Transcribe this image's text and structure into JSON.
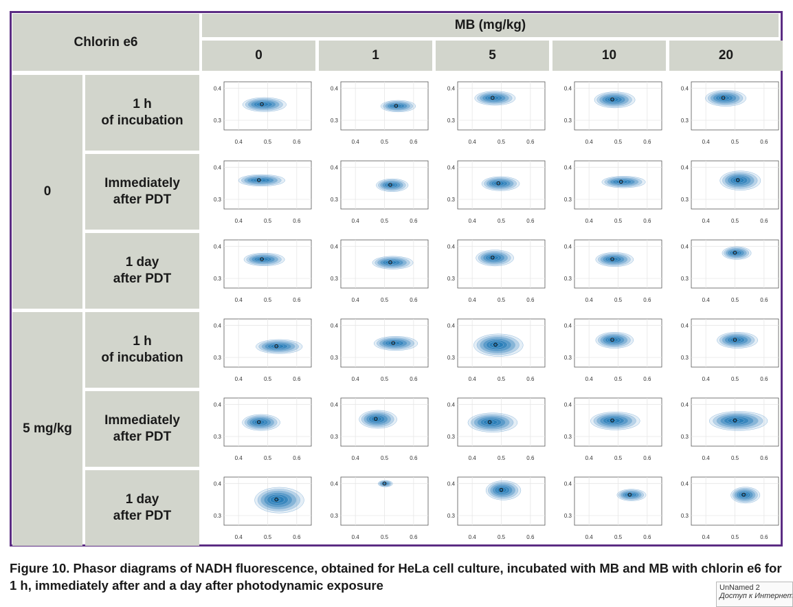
{
  "table": {
    "corner_label": "Chlorin e6",
    "mb_header": "MB (mg/kg)",
    "mb_columns": [
      "0",
      "1",
      "5",
      "10",
      "20"
    ],
    "groups": [
      {
        "label": "0",
        "rows": [
          "1 h\nof incubation",
          "Immediately\nafter PDT",
          "1 day\nafter PDT"
        ]
      },
      {
        "label": "5 mg/kg",
        "rows": [
          "1 h\nof incubation",
          "Immediately\nafter PDT",
          "1 day\nafter PDT"
        ]
      }
    ]
  },
  "chart_data": {
    "type": "contour",
    "description_axes": {
      "x_ticks": [
        "0.4",
        "0.5",
        "0.6"
      ],
      "y_ticks": [
        "0.3",
        "0.4"
      ],
      "xlim": [
        0.35,
        0.65
      ],
      "ylim": [
        0.27,
        0.42
      ]
    },
    "panels": [
      {
        "group": "0",
        "row": "1 h of incubation",
        "mb": "0",
        "center": [
          0.48,
          0.35
        ],
        "spread": [
          0.075,
          0.022
        ]
      },
      {
        "group": "0",
        "row": "1 h of incubation",
        "mb": "1",
        "center": [
          0.54,
          0.345
        ],
        "spread": [
          0.06,
          0.018
        ]
      },
      {
        "group": "0",
        "row": "1 h of incubation",
        "mb": "5",
        "center": [
          0.47,
          0.37
        ],
        "spread": [
          0.07,
          0.022
        ]
      },
      {
        "group": "0",
        "row": "1 h of incubation",
        "mb": "10",
        "center": [
          0.48,
          0.365
        ],
        "spread": [
          0.07,
          0.025
        ]
      },
      {
        "group": "0",
        "row": "1 h of incubation",
        "mb": "20",
        "center": [
          0.46,
          0.37
        ],
        "spread": [
          0.07,
          0.025
        ]
      },
      {
        "group": "0",
        "row": "Immediately after PDT",
        "mb": "0",
        "center": [
          0.47,
          0.36
        ],
        "spread": [
          0.08,
          0.018
        ]
      },
      {
        "group": "0",
        "row": "Immediately after PDT",
        "mb": "1",
        "center": [
          0.52,
          0.345
        ],
        "spread": [
          0.055,
          0.02
        ]
      },
      {
        "group": "0",
        "row": "Immediately after PDT",
        "mb": "5",
        "center": [
          0.49,
          0.35
        ],
        "spread": [
          0.065,
          0.022
        ]
      },
      {
        "group": "0",
        "row": "Immediately after PDT",
        "mb": "10",
        "center": [
          0.51,
          0.355
        ],
        "spread": [
          0.075,
          0.018
        ]
      },
      {
        "group": "0",
        "row": "Immediately after PDT",
        "mb": "20",
        "center": [
          0.51,
          0.36
        ],
        "spread": [
          0.07,
          0.03
        ]
      },
      {
        "group": "0",
        "row": "1 day after PDT",
        "mb": "0",
        "center": [
          0.48,
          0.36
        ],
        "spread": [
          0.07,
          0.02
        ]
      },
      {
        "group": "0",
        "row": "1 day after PDT",
        "mb": "1",
        "center": [
          0.52,
          0.35
        ],
        "spread": [
          0.07,
          0.02
        ]
      },
      {
        "group": "0",
        "row": "1 day after PDT",
        "mb": "5",
        "center": [
          0.47,
          0.365
        ],
        "spread": [
          0.065,
          0.025
        ]
      },
      {
        "group": "0",
        "row": "1 day after PDT",
        "mb": "10",
        "center": [
          0.48,
          0.36
        ],
        "spread": [
          0.065,
          0.022
        ]
      },
      {
        "group": "0",
        "row": "1 day after PDT",
        "mb": "20",
        "center": [
          0.5,
          0.38
        ],
        "spread": [
          0.05,
          0.02
        ]
      },
      {
        "group": "5 mg/kg",
        "row": "1 h of incubation",
        "mb": "0",
        "center": [
          0.53,
          0.335
        ],
        "spread": [
          0.08,
          0.022
        ]
      },
      {
        "group": "5 mg/kg",
        "row": "1 h of incubation",
        "mb": "1",
        "center": [
          0.53,
          0.345
        ],
        "spread": [
          0.075,
          0.022
        ]
      },
      {
        "group": "5 mg/kg",
        "row": "1 h of incubation",
        "mb": "5",
        "center": [
          0.48,
          0.34
        ],
        "spread": [
          0.085,
          0.035
        ]
      },
      {
        "group": "5 mg/kg",
        "row": "1 h of incubation",
        "mb": "10",
        "center": [
          0.48,
          0.355
        ],
        "spread": [
          0.065,
          0.025
        ]
      },
      {
        "group": "5 mg/kg",
        "row": "1 h of incubation",
        "mb": "20",
        "center": [
          0.5,
          0.355
        ],
        "spread": [
          0.07,
          0.025
        ]
      },
      {
        "group": "5 mg/kg",
        "row": "Immediately after PDT",
        "mb": "0",
        "center": [
          0.47,
          0.345
        ],
        "spread": [
          0.065,
          0.025
        ]
      },
      {
        "group": "5 mg/kg",
        "row": "Immediately after PDT",
        "mb": "1",
        "center": [
          0.47,
          0.355
        ],
        "spread": [
          0.065,
          0.028
        ]
      },
      {
        "group": "5 mg/kg",
        "row": "Immediately after PDT",
        "mb": "5",
        "center": [
          0.46,
          0.345
        ],
        "spread": [
          0.085,
          0.03
        ]
      },
      {
        "group": "5 mg/kg",
        "row": "Immediately after PDT",
        "mb": "10",
        "center": [
          0.48,
          0.35
        ],
        "spread": [
          0.085,
          0.028
        ]
      },
      {
        "group": "5 mg/kg",
        "row": "Immediately after PDT",
        "mb": "20",
        "center": [
          0.5,
          0.35
        ],
        "spread": [
          0.1,
          0.03
        ]
      },
      {
        "group": "5 mg/kg",
        "row": "1 day after PDT",
        "mb": "0",
        "center": [
          0.53,
          0.35
        ],
        "spread": [
          0.085,
          0.04
        ]
      },
      {
        "group": "5 mg/kg",
        "row": "1 day after PDT",
        "mb": "1",
        "center": [
          0.5,
          0.4
        ],
        "spread": [
          0.025,
          0.01
        ]
      },
      {
        "group": "5 mg/kg",
        "row": "1 day after PDT",
        "mb": "5",
        "center": [
          0.5,
          0.38
        ],
        "spread": [
          0.06,
          0.03
        ]
      },
      {
        "group": "5 mg/kg",
        "row": "1 day after PDT",
        "mb": "10",
        "center": [
          0.54,
          0.365
        ],
        "spread": [
          0.05,
          0.018
        ]
      },
      {
        "group": "5 mg/kg",
        "row": "1 day after PDT",
        "mb": "20",
        "center": [
          0.53,
          0.365
        ],
        "spread": [
          0.05,
          0.025
        ]
      }
    ],
    "colors": {
      "fill": "#1f77b4",
      "panel_bg": "#ffffff",
      "grid": "#e6e6e6"
    }
  },
  "caption": "Figure 10. Phasor diagrams of NADH fluorescence, obtained for HeLa cell culture, incubated with MB and MB with chlorin e6 for 1 h, immediately after and a day after photodynamic exposure",
  "watermark": {
    "line1": "UnNamed  2",
    "line2": "Доступ к Интернету"
  },
  "colors": {
    "border": "#5b2c83",
    "header_bg": "#d2d5cc"
  }
}
